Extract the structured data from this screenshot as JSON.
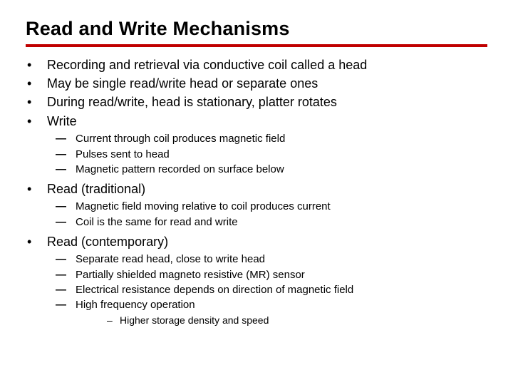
{
  "title": "Read and Write Mechanisms",
  "rule_color": "#c00000",
  "bullets": {
    "l1": "•",
    "l2": "—",
    "l3": "–"
  },
  "items": [
    {
      "text": "Recording and retrieval via conductive coil called a head"
    },
    {
      "text": "May be single read/write head or separate ones"
    },
    {
      "text": "During read/write, head is stationary, platter rotates"
    },
    {
      "text": "Write",
      "sub": [
        {
          "text": "Current through coil produces magnetic field"
        },
        {
          "text": "Pulses sent to head"
        },
        {
          "text": "Magnetic pattern recorded on surface below"
        }
      ]
    },
    {
      "text": "Read (traditional)",
      "sub": [
        {
          "text": "Magnetic field moving relative to coil produces current"
        },
        {
          "text": "Coil is the same for read and write"
        }
      ]
    },
    {
      "text": "Read (contemporary)",
      "sub": [
        {
          "text": "Separate read head, close to write head"
        },
        {
          "text": "Partially shielded magneto resistive (MR) sensor"
        },
        {
          "text": "Electrical resistance depends on direction of magnetic field"
        },
        {
          "text": "High frequency operation",
          "sub": [
            {
              "text": "Higher storage density and speed"
            }
          ]
        }
      ]
    }
  ]
}
